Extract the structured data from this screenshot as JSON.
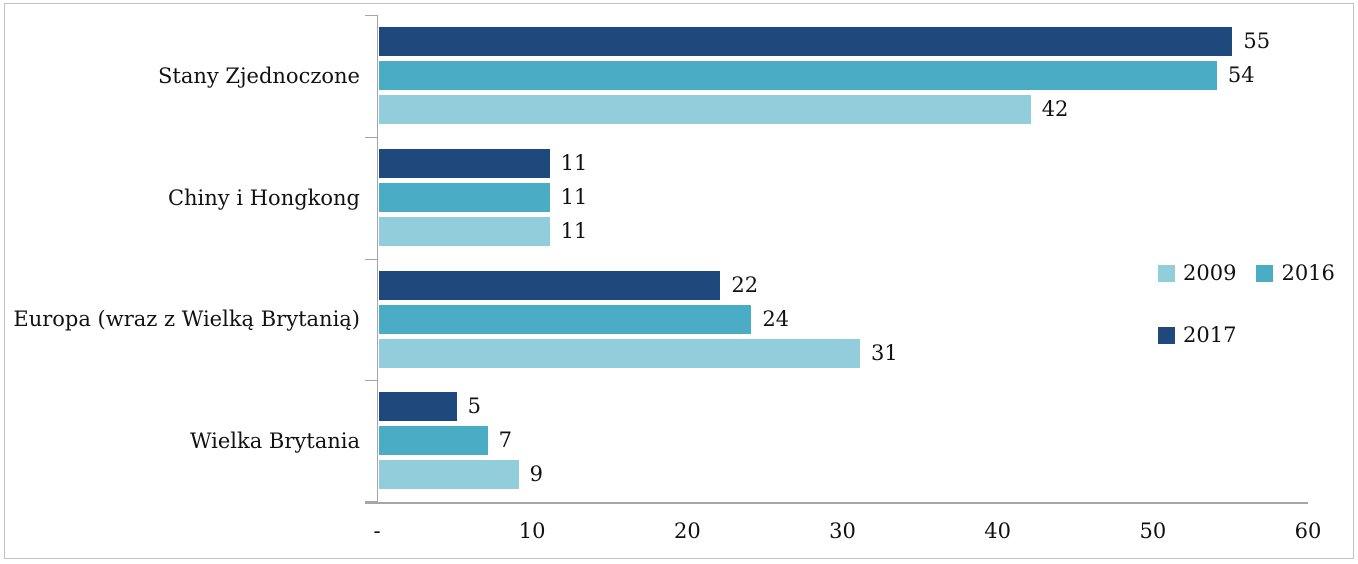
{
  "chart_data": {
    "type": "bar",
    "orientation": "horizontal",
    "title": "",
    "categories": [
      "Stany Zjednoczone",
      "Chiny i Hongkong",
      "Europa (wraz z Wielką Brytanią)",
      "Wielka Brytania"
    ],
    "series": [
      {
        "name": "2009",
        "color": "#92CDDC",
        "values": [
          42,
          11,
          31,
          9
        ]
      },
      {
        "name": "2016",
        "color": "#4BACC6",
        "values": [
          54,
          11,
          24,
          7
        ]
      },
      {
        "name": "2017",
        "color": "#1F497D",
        "values": [
          55,
          11,
          22,
          5
        ]
      }
    ],
    "bar_order_top_to_bottom": [
      "2017",
      "2016",
      "2009"
    ],
    "data_labels": true,
    "x_axis": {
      "min": 0,
      "max": 60,
      "tick_labels": [
        "-",
        "10",
        "20",
        "30",
        "40",
        "50",
        "60"
      ]
    },
    "legend": {
      "position": "middle-right",
      "rows": [
        [
          "2009",
          "2016"
        ],
        [
          "2017"
        ]
      ]
    },
    "grid": false
  },
  "style": {
    "axis_color": "#A6A6A6",
    "frame_border_color": "#C3C3C3",
    "background": "#FFFFFF",
    "text_color": "#111111"
  }
}
